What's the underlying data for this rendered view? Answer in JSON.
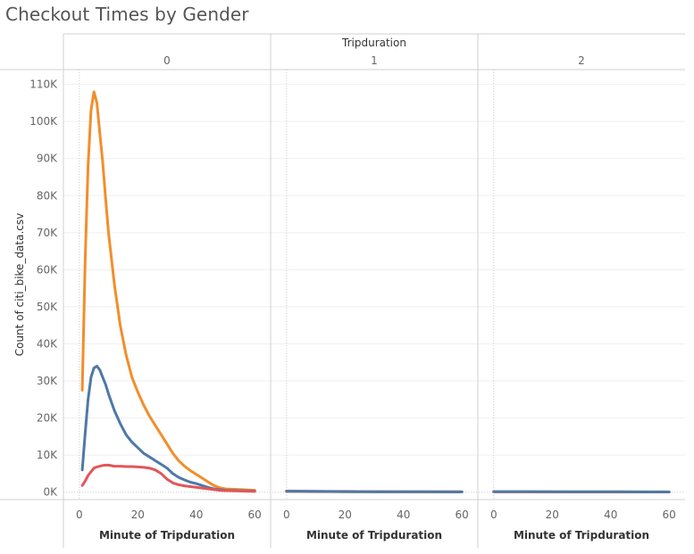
{
  "title": "Checkout Times by Gender",
  "chart_data": {
    "type": "line",
    "column_header": "Tripduration",
    "panels": [
      {
        "label": "0",
        "series": [
          {
            "color": "#f28e2b",
            "x": [
              1,
              2,
              3,
              4,
              5,
              6,
              7,
              8,
              9,
              10,
              12,
              14,
              16,
              18,
              20,
              22,
              24,
              26,
              28,
              30,
              32,
              34,
              36,
              38,
              40,
              42,
              44,
              46,
              48,
              50,
              55,
              60
            ],
            "y": [
              27500,
              63000,
              88000,
              103000,
              108000,
              105000,
              97000,
              89000,
              79000,
              70000,
              56000,
              45000,
              37000,
              31000,
              27000,
              23500,
              20500,
              18000,
              15500,
              13000,
              10500,
              8500,
              7000,
              5800,
              4800,
              3800,
              2800,
              1800,
              1200,
              900,
              700,
              500
            ]
          },
          {
            "color": "#4e79a7",
            "x": [
              1,
              2,
              3,
              4,
              5,
              6,
              7,
              8,
              9,
              10,
              12,
              14,
              16,
              18,
              20,
              22,
              24,
              26,
              28,
              30,
              32,
              34,
              36,
              38,
              40,
              42,
              44,
              46,
              48,
              50,
              55,
              60
            ],
            "y": [
              6000,
              16000,
              25000,
              31000,
              33500,
              34000,
              33000,
              31000,
              29000,
              26500,
              22000,
              18500,
              15500,
              13500,
              12000,
              10500,
              9500,
              8500,
              7500,
              6500,
              5000,
              4000,
              3300,
              2700,
              2300,
              1800,
              1300,
              900,
              700,
              500,
              400,
              300
            ]
          },
          {
            "color": "#e15759",
            "x": [
              1,
              2,
              3,
              4,
              5,
              6,
              7,
              8,
              9,
              10,
              12,
              14,
              16,
              18,
              20,
              22,
              24,
              26,
              28,
              30,
              32,
              34,
              36,
              38,
              40,
              42,
              44,
              46,
              48,
              50,
              55,
              60
            ],
            "y": [
              1800,
              3000,
              4500,
              5500,
              6500,
              6800,
              7000,
              7200,
              7300,
              7300,
              7000,
              7000,
              6900,
              6900,
              6800,
              6700,
              6500,
              6000,
              5000,
              3500,
              2500,
              2000,
              1700,
              1500,
              1300,
              1100,
              900,
              700,
              500,
              400,
              300,
              200
            ]
          }
        ]
      },
      {
        "label": "1",
        "series": [
          {
            "color": "#f28e2b",
            "x": [
              0,
              10,
              20,
              30,
              40,
              50,
              60
            ],
            "y": [
              200,
              150,
              120,
              100,
              90,
              80,
              70
            ]
          },
          {
            "color": "#e15759",
            "x": [
              0,
              10,
              20,
              30,
              40,
              50,
              60
            ],
            "y": [
              300,
              250,
              200,
              150,
              120,
              100,
              90
            ]
          },
          {
            "color": "#4e79a7",
            "x": [
              0,
              10,
              20,
              30,
              40,
              50,
              60
            ],
            "y": [
              250,
              200,
              150,
              120,
              100,
              90,
              80
            ]
          }
        ]
      },
      {
        "label": "2",
        "series": [
          {
            "color": "#f28e2b",
            "x": [
              0,
              10,
              20,
              30,
              40,
              50,
              60
            ],
            "y": [
              100,
              90,
              80,
              70,
              60,
              50,
              40
            ]
          },
          {
            "color": "#e15759",
            "x": [
              0,
              10,
              20,
              30,
              40,
              50,
              60
            ],
            "y": [
              120,
              100,
              90,
              80,
              70,
              60,
              50
            ]
          },
          {
            "color": "#4e79a7",
            "x": [
              0,
              10,
              20,
              30,
              40,
              50,
              60
            ],
            "y": [
              150,
              130,
              110,
              100,
              90,
              80,
              70
            ]
          }
        ]
      }
    ],
    "xlabel": "Minute of Tripduration",
    "ylabel": "Count of citi_bike_data.csv",
    "xticks": [
      0,
      20,
      40,
      60
    ],
    "yticks": [
      0,
      10000,
      20000,
      30000,
      40000,
      50000,
      60000,
      70000,
      80000,
      90000,
      100000,
      110000
    ],
    "ytick_labels": [
      "0K",
      "10K",
      "20K",
      "30K",
      "40K",
      "50K",
      "60K",
      "70K",
      "80K",
      "90K",
      "100K",
      "110K"
    ],
    "xlim": [
      -3,
      63
    ],
    "ylim": [
      -2000,
      114000
    ],
    "grid": true,
    "legend": "none"
  }
}
